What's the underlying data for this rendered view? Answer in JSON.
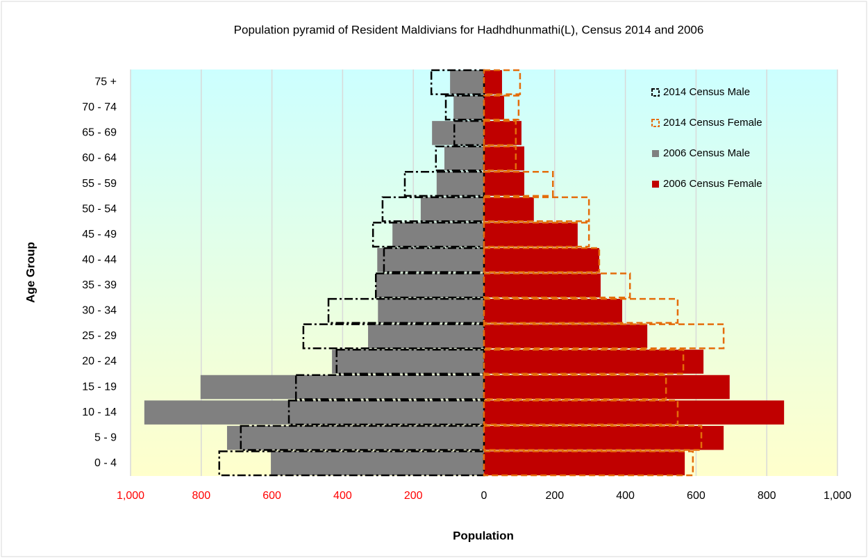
{
  "chart_data": {
    "type": "pyramid",
    "title": "Population pyramid of Resident Maldivians for Hadhdhunmathi(L), Census 2014 and 2006",
    "x_label": "Population",
    "y_label": "Age Group",
    "categories": [
      "0 - 4",
      "5 - 9",
      "10 - 14",
      "15 - 19",
      "20 - 24",
      "25 - 29",
      "30 - 34",
      "35 - 39",
      "40 - 44",
      "45 - 49",
      "50 - 54",
      "55 - 59",
      "60 - 64",
      "65 - 69",
      "70 - 74",
      "75 +"
    ],
    "series": [
      {
        "name": "2014 Census Male",
        "color": "#000000",
        "filled": false,
        "values": [
          -749,
          -688,
          -552,
          -532,
          -417,
          -511,
          -440,
          -306,
          -283,
          -314,
          -287,
          -224,
          -136,
          -84,
          -108,
          -149
        ]
      },
      {
        "name": "2014 Census Female",
        "color": "#e46c0a",
        "filled": false,
        "values": [
          591,
          615,
          548,
          515,
          564,
          678,
          548,
          413,
          326,
          297,
          297,
          195,
          90,
          90,
          98,
          102
        ]
      },
      {
        "name": "2006 Census Male",
        "color": "#808080",
        "filled": true,
        "values": [
          -603,
          -727,
          -961,
          -802,
          -430,
          -328,
          -300,
          -306,
          -302,
          -259,
          -179,
          -134,
          -112,
          -147,
          -86,
          -96
        ]
      },
      {
        "name": "2006 Census Female",
        "color": "#c00000",
        "filled": true,
        "values": [
          568,
          678,
          849,
          695,
          621,
          462,
          391,
          330,
          326,
          265,
          141,
          114,
          114,
          106,
          57,
          51
        ]
      }
    ],
    "xlim": [
      -1000,
      1000
    ],
    "xticks": [
      {
        "value": -1000,
        "label": "1,000"
      },
      {
        "value": -800,
        "label": "800"
      },
      {
        "value": -600,
        "label": "600"
      },
      {
        "value": -400,
        "label": "400"
      },
      {
        "value": -200,
        "label": "200"
      },
      0,
      200,
      400,
      600,
      800,
      {
        "value": 1000,
        "label": "1,000"
      }
    ],
    "negative_tick_label_color": "#ff0000",
    "grid": true,
    "legend": "upper right"
  }
}
